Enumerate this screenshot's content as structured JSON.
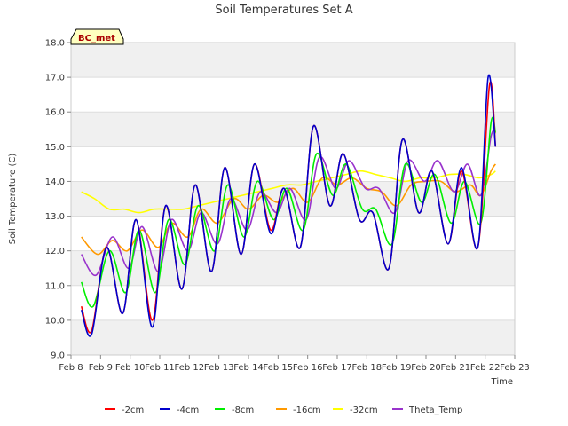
{
  "chart_data": {
    "type": "line",
    "title": "Soil Temperatures Set A",
    "xlabel": "Time",
    "ylabel": "Soil Temperature (C)",
    "ylim": [
      9.0,
      18.0
    ],
    "xlim": [
      8,
      23
    ],
    "y_ticks": [
      "9.0",
      "10.0",
      "11.0",
      "12.0",
      "13.0",
      "14.0",
      "15.0",
      "16.0",
      "17.0",
      "18.0"
    ],
    "x_ticks": [
      "Feb 8",
      "Feb 9",
      "Feb 10",
      "Feb 11",
      "Feb 12",
      "Feb 13",
      "Feb 14",
      "Feb 15",
      "Feb 16",
      "Feb 17",
      "Feb 18",
      "Feb 19",
      "Feb 20",
      "Feb 21",
      "Feb 22",
      "Feb 23"
    ],
    "grid": true,
    "banded_background": true,
    "legend_position": "bottom",
    "annotation": "BC_met",
    "series": [
      {
        "name": "-2cm",
        "color": "#ff0000",
        "points": [
          [
            8.35,
            10.4
          ],
          [
            8.7,
            9.7
          ],
          [
            9.2,
            12.1
          ],
          [
            9.75,
            10.2
          ],
          [
            10.2,
            12.9
          ],
          [
            10.75,
            10.0
          ],
          [
            11.2,
            13.3
          ],
          [
            11.75,
            10.9
          ],
          [
            12.2,
            13.9
          ],
          [
            12.75,
            11.4
          ],
          [
            13.2,
            14.4
          ],
          [
            13.75,
            11.9
          ],
          [
            14.2,
            14.5
          ],
          [
            14.75,
            12.6
          ],
          [
            15.2,
            13.8
          ],
          [
            15.75,
            12.1
          ],
          [
            16.2,
            15.6
          ],
          [
            16.75,
            13.3
          ],
          [
            17.2,
            14.8
          ],
          [
            17.75,
            12.9
          ],
          [
            18.2,
            13.1
          ],
          [
            18.75,
            11.5
          ],
          [
            19.2,
            15.2
          ],
          [
            19.75,
            13.1
          ],
          [
            20.2,
            14.3
          ],
          [
            20.75,
            12.2
          ],
          [
            21.2,
            14.3
          ],
          [
            21.75,
            12.1
          ],
          [
            22.15,
            16.8
          ],
          [
            22.35,
            15.0
          ]
        ]
      },
      {
        "name": "-4cm",
        "color": "#0000cc",
        "points": [
          [
            8.35,
            10.3
          ],
          [
            8.7,
            9.6
          ],
          [
            9.2,
            12.1
          ],
          [
            9.75,
            10.2
          ],
          [
            10.2,
            12.9
          ],
          [
            10.75,
            9.8
          ],
          [
            11.2,
            13.3
          ],
          [
            11.75,
            10.9
          ],
          [
            12.2,
            13.9
          ],
          [
            12.75,
            11.4
          ],
          [
            13.2,
            14.4
          ],
          [
            13.75,
            11.9
          ],
          [
            14.2,
            14.5
          ],
          [
            14.75,
            12.5
          ],
          [
            15.2,
            13.8
          ],
          [
            15.75,
            12.1
          ],
          [
            16.2,
            15.6
          ],
          [
            16.75,
            13.3
          ],
          [
            17.2,
            14.8
          ],
          [
            17.75,
            12.9
          ],
          [
            18.2,
            13.1
          ],
          [
            18.75,
            11.5
          ],
          [
            19.2,
            15.2
          ],
          [
            19.75,
            13.1
          ],
          [
            20.2,
            14.3
          ],
          [
            20.75,
            12.2
          ],
          [
            21.2,
            14.4
          ],
          [
            21.75,
            12.1
          ],
          [
            22.1,
            17.0
          ],
          [
            22.35,
            15.0
          ]
        ]
      },
      {
        "name": "-8cm",
        "color": "#00ee00",
        "points": [
          [
            8.35,
            11.1
          ],
          [
            8.75,
            10.4
          ],
          [
            9.3,
            12.0
          ],
          [
            9.85,
            10.8
          ],
          [
            10.3,
            12.6
          ],
          [
            10.85,
            10.8
          ],
          [
            11.3,
            12.9
          ],
          [
            11.85,
            11.6
          ],
          [
            12.3,
            13.3
          ],
          [
            12.85,
            12.0
          ],
          [
            13.3,
            13.9
          ],
          [
            13.85,
            12.4
          ],
          [
            14.3,
            14.0
          ],
          [
            14.85,
            12.9
          ],
          [
            15.3,
            13.8
          ],
          [
            15.85,
            12.6
          ],
          [
            16.3,
            14.8
          ],
          [
            16.85,
            13.6
          ],
          [
            17.3,
            14.5
          ],
          [
            17.85,
            13.2
          ],
          [
            18.3,
            13.2
          ],
          [
            18.85,
            12.2
          ],
          [
            19.3,
            14.5
          ],
          [
            19.85,
            13.4
          ],
          [
            20.3,
            14.2
          ],
          [
            20.85,
            12.8
          ],
          [
            21.3,
            14.0
          ],
          [
            21.85,
            12.8
          ],
          [
            22.2,
            15.7
          ],
          [
            22.35,
            15.4
          ]
        ]
      },
      {
        "name": "-16cm",
        "color": "#ff9900",
        "points": [
          [
            8.35,
            12.4
          ],
          [
            8.9,
            11.9
          ],
          [
            9.4,
            12.3
          ],
          [
            9.9,
            12.0
          ],
          [
            10.4,
            12.6
          ],
          [
            10.95,
            12.1
          ],
          [
            11.4,
            12.8
          ],
          [
            11.95,
            12.4
          ],
          [
            12.4,
            13.2
          ],
          [
            12.95,
            12.8
          ],
          [
            13.5,
            13.5
          ],
          [
            14.0,
            13.2
          ],
          [
            14.5,
            13.6
          ],
          [
            15.0,
            13.4
          ],
          [
            15.5,
            13.8
          ],
          [
            16.0,
            13.4
          ],
          [
            16.5,
            14.1
          ],
          [
            17.0,
            13.9
          ],
          [
            17.5,
            14.1
          ],
          [
            18.0,
            13.8
          ],
          [
            18.5,
            13.7
          ],
          [
            19.0,
            13.3
          ],
          [
            19.5,
            13.9
          ],
          [
            20.0,
            14.0
          ],
          [
            20.5,
            14.0
          ],
          [
            21.0,
            13.7
          ],
          [
            21.5,
            13.9
          ],
          [
            21.85,
            13.6
          ],
          [
            22.2,
            14.3
          ],
          [
            22.35,
            14.5
          ]
        ]
      },
      {
        "name": "-32cm",
        "color": "#ffff00",
        "points": [
          [
            8.35,
            13.7
          ],
          [
            8.8,
            13.5
          ],
          [
            9.3,
            13.2
          ],
          [
            9.8,
            13.2
          ],
          [
            10.3,
            13.1
          ],
          [
            10.8,
            13.2
          ],
          [
            11.3,
            13.2
          ],
          [
            11.8,
            13.2
          ],
          [
            12.3,
            13.3
          ],
          [
            12.8,
            13.4
          ],
          [
            13.3,
            13.5
          ],
          [
            13.8,
            13.6
          ],
          [
            14.3,
            13.7
          ],
          [
            14.8,
            13.8
          ],
          [
            15.3,
            13.9
          ],
          [
            15.8,
            13.9
          ],
          [
            16.3,
            14.0
          ],
          [
            16.8,
            14.1
          ],
          [
            17.3,
            14.2
          ],
          [
            17.8,
            14.3
          ],
          [
            18.3,
            14.2
          ],
          [
            18.8,
            14.1
          ],
          [
            19.3,
            14.0
          ],
          [
            19.8,
            14.1
          ],
          [
            20.3,
            14.1
          ],
          [
            20.8,
            14.2
          ],
          [
            21.3,
            14.2
          ],
          [
            21.8,
            14.1
          ],
          [
            22.2,
            14.2
          ],
          [
            22.35,
            14.3
          ]
        ]
      },
      {
        "name": "Theta_Temp",
        "color": "#9933cc",
        "points": [
          [
            8.35,
            11.9
          ],
          [
            8.85,
            11.3
          ],
          [
            9.4,
            12.4
          ],
          [
            9.95,
            11.5
          ],
          [
            10.4,
            12.7
          ],
          [
            10.95,
            11.4
          ],
          [
            11.4,
            12.9
          ],
          [
            11.95,
            12.0
          ],
          [
            12.4,
            13.1
          ],
          [
            12.95,
            12.2
          ],
          [
            13.4,
            13.5
          ],
          [
            13.95,
            12.6
          ],
          [
            14.4,
            13.7
          ],
          [
            14.95,
            13.1
          ],
          [
            15.4,
            13.8
          ],
          [
            15.95,
            12.9
          ],
          [
            16.4,
            14.7
          ],
          [
            16.95,
            13.8
          ],
          [
            17.4,
            14.6
          ],
          [
            17.95,
            13.8
          ],
          [
            18.4,
            13.8
          ],
          [
            18.95,
            13.1
          ],
          [
            19.4,
            14.6
          ],
          [
            19.95,
            14.0
          ],
          [
            20.4,
            14.6
          ],
          [
            20.95,
            13.7
          ],
          [
            21.4,
            14.5
          ],
          [
            21.85,
            13.6
          ],
          [
            22.2,
            15.3
          ],
          [
            22.35,
            15.4
          ]
        ]
      }
    ]
  }
}
